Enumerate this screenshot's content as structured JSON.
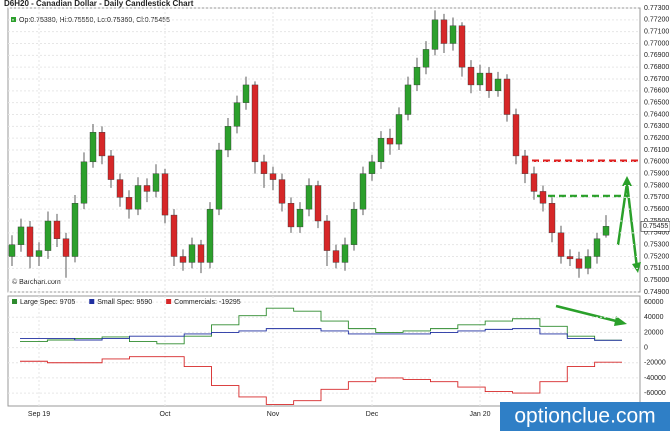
{
  "chart_data": [
    {
      "type": "candlestick",
      "title": "D6H20 - Canadian Dollar - Daily Candlestick Chart",
      "legend_text": "Op:0.75380, Hi:0.75550, Lo:0.75360, Cl:0.75455",
      "source": "© Barchart.com",
      "last_price_label": "0.75455",
      "up_color": "#2ca02c",
      "down_color": "#d62728",
      "open": [
        0.752,
        0.753,
        0.7545,
        0.752,
        0.7525,
        0.755,
        0.7535,
        0.752,
        0.7565,
        0.76,
        0.7625,
        0.7605,
        0.7585,
        0.757,
        0.756,
        0.758,
        0.7575,
        0.759,
        0.7555,
        0.752,
        0.7515,
        0.753,
        0.7515,
        0.756,
        0.761,
        0.763,
        0.765,
        0.7665,
        0.76,
        0.759,
        0.7585,
        0.7565,
        0.7545,
        0.756,
        0.758,
        0.755,
        0.7525,
        0.7515,
        0.753,
        0.756,
        0.759,
        0.76,
        0.762,
        0.7615,
        0.764,
        0.7665,
        0.768,
        0.7695,
        0.772,
        0.77,
        0.7715,
        0.768,
        0.7665,
        0.7675,
        0.766,
        0.767,
        0.764,
        0.7605,
        0.759,
        0.7575,
        0.7565,
        0.754,
        0.752,
        0.7518,
        0.751,
        0.752,
        0.7538
      ],
      "high": [
        0.7538,
        0.7552,
        0.755,
        0.7532,
        0.7558,
        0.7556,
        0.754,
        0.7572,
        0.7608,
        0.7632,
        0.763,
        0.761,
        0.759,
        0.7576,
        0.7587,
        0.7586,
        0.7598,
        0.7594,
        0.756,
        0.7526,
        0.7536,
        0.7534,
        0.7566,
        0.7616,
        0.7637,
        0.7656,
        0.7672,
        0.7668,
        0.7606,
        0.7596,
        0.759,
        0.757,
        0.7566,
        0.7586,
        0.7584,
        0.7555,
        0.753,
        0.7536,
        0.7566,
        0.7596,
        0.7606,
        0.7626,
        0.7628,
        0.7646,
        0.7672,
        0.7688,
        0.7702,
        0.7728,
        0.7725,
        0.7722,
        0.7718,
        0.7686,
        0.7682,
        0.768,
        0.7676,
        0.7674,
        0.7645,
        0.761,
        0.7596,
        0.758,
        0.757,
        0.7546,
        0.7526,
        0.7524,
        0.7526,
        0.754,
        0.7555
      ],
      "low": [
        0.7512,
        0.7524,
        0.751,
        0.7512,
        0.7518,
        0.7528,
        0.7502,
        0.7515,
        0.756,
        0.7595,
        0.7598,
        0.7578,
        0.7562,
        0.7552,
        0.7555,
        0.7566,
        0.757,
        0.7548,
        0.7512,
        0.7508,
        0.751,
        0.7506,
        0.751,
        0.7555,
        0.7604,
        0.7624,
        0.7644,
        0.759,
        0.7578,
        0.7576,
        0.7558,
        0.754,
        0.754,
        0.7554,
        0.7544,
        0.7512,
        0.751,
        0.7508,
        0.7525,
        0.7555,
        0.7584,
        0.7594,
        0.7606,
        0.761,
        0.7635,
        0.766,
        0.7674,
        0.769,
        0.7692,
        0.7694,
        0.7672,
        0.7658,
        0.766,
        0.7654,
        0.7655,
        0.7634,
        0.7598,
        0.7582,
        0.7568,
        0.7558,
        0.7532,
        0.7514,
        0.7512,
        0.7502,
        0.7505,
        0.7514,
        0.7536
      ],
      "close": [
        0.753,
        0.7545,
        0.752,
        0.7525,
        0.755,
        0.7535,
        0.752,
        0.7565,
        0.76,
        0.7625,
        0.7605,
        0.7585,
        0.757,
        0.756,
        0.758,
        0.7575,
        0.759,
        0.7555,
        0.752,
        0.7515,
        0.753,
        0.7515,
        0.756,
        0.761,
        0.763,
        0.765,
        0.7665,
        0.76,
        0.759,
        0.7585,
        0.7565,
        0.7545,
        0.756,
        0.758,
        0.755,
        0.7525,
        0.7515,
        0.753,
        0.756,
        0.759,
        0.76,
        0.762,
        0.7615,
        0.764,
        0.7665,
        0.768,
        0.7695,
        0.772,
        0.77,
        0.7715,
        0.768,
        0.7665,
        0.7675,
        0.766,
        0.767,
        0.764,
        0.7605,
        0.759,
        0.7575,
        0.7565,
        0.754,
        0.752,
        0.7518,
        0.751,
        0.752,
        0.7535,
        0.75455
      ],
      "xticks": [
        {
          "value": 3,
          "label": "Sep 19"
        },
        {
          "value": 17,
          "label": "Oct"
        },
        {
          "value": 29,
          "label": "Nov"
        },
        {
          "value": 40,
          "label": "Dec"
        },
        {
          "value": 52,
          "label": "Jan 20"
        }
      ],
      "ylim": [
        0.749,
        0.773
      ],
      "yticks": [
        {
          "value": 0.773,
          "label": "0.77300"
        },
        {
          "value": 0.772,
          "label": "0.77200"
        },
        {
          "value": 0.771,
          "label": "0.77100"
        },
        {
          "value": 0.77,
          "label": "0.77000"
        },
        {
          "value": 0.769,
          "label": "0.76900"
        },
        {
          "value": 0.768,
          "label": "0.76800"
        },
        {
          "value": 0.767,
          "label": "0.76700"
        },
        {
          "value": 0.766,
          "label": "0.76600"
        },
        {
          "value": 0.765,
          "label": "0.76500"
        },
        {
          "value": 0.764,
          "label": "0.76400"
        },
        {
          "value": 0.763,
          "label": "0.76300"
        },
        {
          "value": 0.762,
          "label": "0.76200"
        },
        {
          "value": 0.761,
          "label": "0.76100"
        },
        {
          "value": 0.76,
          "label": "0.76000"
        },
        {
          "value": 0.759,
          "label": "0.75900"
        },
        {
          "value": 0.758,
          "label": "0.75800"
        },
        {
          "value": 0.757,
          "label": "0.75700"
        },
        {
          "value": 0.756,
          "label": "0.75600"
        },
        {
          "value": 0.755,
          "label": "0.75500"
        },
        {
          "value": 0.754,
          "label": "0.75400"
        },
        {
          "value": 0.753,
          "label": "0.75300"
        },
        {
          "value": 0.752,
          "label": "0.75200"
        },
        {
          "value": 0.751,
          "label": "0.75100"
        },
        {
          "value": 0.75,
          "label": "0.75000"
        },
        {
          "value": 0.749,
          "label": "0.74900"
        }
      ],
      "grid": true
    },
    {
      "type": "step",
      "series": [
        {
          "name": "Large Spec: 9705",
          "color": "#2e8b2e",
          "values": [
            8000,
            10000,
            12000,
            14000,
            8000,
            5000,
            15000,
            30000,
            42000,
            52000,
            48000,
            35000,
            25000,
            20000,
            22000,
            25000,
            30000,
            35000,
            38000,
            28000,
            15000,
            9705
          ]
        },
        {
          "name": "Small Spec: 9590",
          "color": "#1f2fa0",
          "values": [
            12000,
            12000,
            10000,
            12000,
            15000,
            15000,
            18000,
            20000,
            22000,
            25000,
            25000,
            22000,
            18000,
            18000,
            18000,
            20000,
            22000,
            24000,
            25000,
            18000,
            12000,
            9590
          ]
        },
        {
          "name": "Commercials: -19295",
          "color": "#d62728",
          "values": [
            -18000,
            -20000,
            -20000,
            -15000,
            -12000,
            -12000,
            -25000,
            -50000,
            -65000,
            -75000,
            -70000,
            -55000,
            -45000,
            -40000,
            -42000,
            -45000,
            -52000,
            -58000,
            -60000,
            -45000,
            -25000,
            -19295
          ]
        }
      ],
      "ylim": [
        -77000,
        68000
      ],
      "yticks": [
        60000,
        40000,
        20000,
        0,
        -20000,
        -40000,
        -60000
      ],
      "grid": true
    },
    {
      "type": "watermark",
      "text": "optionclue.com"
    }
  ]
}
